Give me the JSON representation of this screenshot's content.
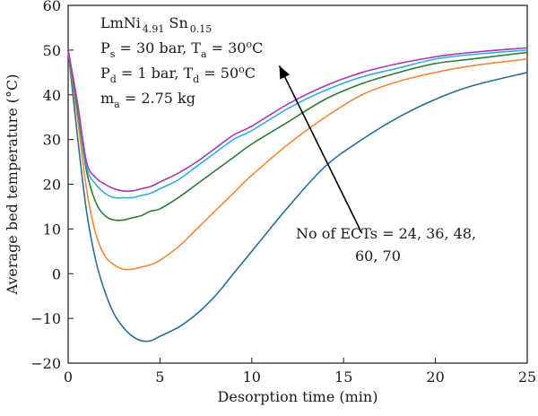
{
  "chart_data": {
    "type": "line",
    "title": "",
    "xlabel": "Desorption time (min)",
    "ylabel": "Average bed temperature (°C)",
    "xlim": [
      0,
      25
    ],
    "ylim": [
      -20,
      60
    ],
    "xticks": [
      "0",
      "5",
      "10",
      "15",
      "20",
      "25"
    ],
    "yticks": [
      "−20",
      "−10",
      "0",
      "10",
      "20",
      "30",
      "40",
      "50",
      "60"
    ],
    "grid": false,
    "legend": "none",
    "annotation_block": {
      "line1": {
        "base": "LmNi",
        "sub1": "4.91",
        "mid": " Sn",
        "sub2": "0.15"
      },
      "line2": {
        "p": "P",
        "p_sub": "s",
        "p_val": " = 30 bar, T",
        "t_sub": "a",
        "t_val": " = 30",
        "sup": "o",
        "unit": "C"
      },
      "line3": {
        "p": "P",
        "p_sub": "d",
        "p_val": " = 1 bar, T",
        "t_sub": "d",
        "t_val": " = 50",
        "sup": "o",
        "unit": "C"
      },
      "line4": {
        "m": "m",
        "m_sub": "a",
        "m_val": " = 2.75 kg"
      }
    },
    "arrow_label": {
      "line1": "No of ECTs = 24, 36, 48,",
      "line2": "60, 70"
    },
    "arrow": {
      "from": [
        16,
        9
      ],
      "to": [
        11.5,
        46.5
      ]
    },
    "series": [
      {
        "color": "#2a6f97",
        "x": [
          0,
          0.5,
          1,
          1.5,
          2,
          2.5,
          3,
          3.5,
          4,
          4.5,
          5,
          6,
          7,
          8,
          9,
          10,
          12,
          14,
          16,
          18,
          20,
          22,
          25
        ],
        "y": [
          50,
          31,
          14,
          3,
          -4,
          -9,
          -12,
          -14,
          -15,
          -15,
          -14,
          -12,
          -9,
          -5,
          0,
          5,
          15,
          24,
          30,
          35,
          39,
          42,
          45
        ]
      },
      {
        "color": "#f08a3c",
        "x": [
          0,
          0.5,
          1,
          1.5,
          2,
          2.5,
          3,
          3.5,
          4,
          4.5,
          5,
          6,
          7,
          8,
          9,
          10,
          12,
          14,
          16,
          18,
          20,
          22,
          25
        ],
        "y": [
          50,
          35,
          19,
          9,
          4,
          2,
          1,
          1,
          1.5,
          2,
          3,
          6,
          10,
          14,
          18,
          22,
          29,
          35,
          40,
          43,
          45,
          46.5,
          48
        ]
      },
      {
        "color": "#2e7d32",
        "x": [
          0,
          0.5,
          1,
          1.5,
          2,
          2.5,
          3,
          3.5,
          4,
          4.5,
          5,
          6,
          7,
          8,
          9,
          10,
          12,
          14,
          16,
          18,
          20,
          22,
          25
        ],
        "y": [
          50,
          37,
          23,
          16,
          13,
          12,
          12,
          12.5,
          13,
          14,
          14.5,
          17,
          20,
          23,
          26,
          29,
          34,
          39,
          42.5,
          45,
          47,
          48,
          49.5
        ]
      },
      {
        "color": "#33aeda",
        "x": [
          0,
          0.5,
          1,
          1.5,
          2,
          2.5,
          3,
          3.5,
          4,
          4.5,
          5,
          6,
          7,
          8,
          9,
          10,
          12,
          14,
          16,
          18,
          20,
          22,
          25
        ],
        "y": [
          50,
          38,
          24,
          20,
          18,
          17,
          17,
          17,
          17.5,
          18,
          19,
          21,
          24,
          27,
          30,
          32,
          37,
          41,
          44,
          46,
          48,
          49,
          50
        ]
      },
      {
        "color": "#a13cb5",
        "x": [
          0,
          0.5,
          1,
          1.5,
          2,
          2.5,
          3,
          3.5,
          4,
          4.5,
          5,
          6,
          7,
          8,
          9,
          10,
          12,
          14,
          16,
          18,
          20,
          22,
          25
        ],
        "y": [
          50,
          38.5,
          25,
          21.5,
          20,
          19,
          18.5,
          18.5,
          19,
          19.5,
          20.5,
          22.5,
          25,
          28,
          31,
          33,
          38,
          42,
          45,
          47,
          48.5,
          49.5,
          50.5
        ]
      }
    ]
  }
}
